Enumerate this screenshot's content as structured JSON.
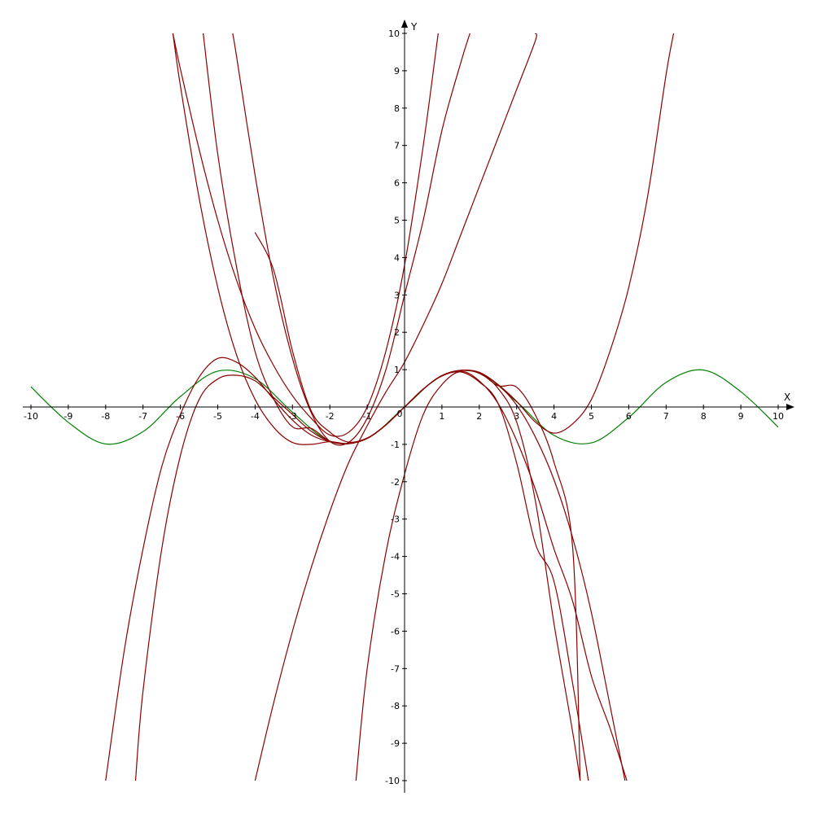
{
  "chart_data": {
    "type": "line",
    "title": "",
    "xlabel": "X",
    "ylabel": "Y",
    "xlim": [
      -10,
      10
    ],
    "ylim": [
      -10,
      10
    ],
    "grid": false,
    "x_ticks": [
      -10,
      -9,
      -8,
      -7,
      -6,
      -5,
      -4,
      -3,
      -2,
      -1,
      1,
      2,
      3,
      4,
      5,
      6,
      7,
      8,
      9,
      10
    ],
    "y_ticks": [
      -10,
      -9,
      -8,
      -7,
      -6,
      -5,
      -4,
      -3,
      -2,
      -1,
      1,
      2,
      3,
      4,
      5,
      6,
      7,
      8,
      9,
      10
    ],
    "origin_label": "0",
    "colors": {
      "sine": "#008000",
      "taylor": "#8b0000",
      "axes": "#000000"
    },
    "series": [
      {
        "color": "#008000",
        "x": [
          -10,
          -9,
          -8,
          -7,
          -6,
          -5,
          -4,
          -3,
          -2,
          -1,
          0,
          1,
          2,
          3,
          4,
          5,
          6,
          7,
          8,
          9,
          10
        ],
        "y": [
          0.54,
          -0.41,
          -0.99,
          -0.66,
          0.28,
          0.96,
          0.76,
          -0.14,
          -0.91,
          -0.84,
          0,
          0.84,
          0.91,
          0.14,
          -0.76,
          -0.96,
          -0.28,
          0.66,
          0.99,
          0.41,
          -0.54
        ]
      },
      {
        "color": "#8b0000",
        "x": [
          -4,
          -3.5,
          -3,
          -2.5,
          -2,
          -1.5,
          -1,
          -0.5,
          0,
          0.5,
          1,
          1.5,
          2,
          2.5,
          3,
          3.5,
          4,
          4.5,
          5
        ],
        "y": [
          4.67,
          3.65,
          1.5,
          -0.1,
          -0.67,
          -0.94,
          -0.83,
          -0.48,
          0,
          0.48,
          0.83,
          0.94,
          0.67,
          0.1,
          -1.5,
          -3.65,
          -4.67,
          -7.4,
          -10.5
        ]
      },
      {
        "color": "#8b0000",
        "x": [
          -5.4,
          -5,
          -4.5,
          -4,
          -3.5,
          -3,
          -2.5,
          -2,
          -1.5,
          -1,
          -0.5,
          0,
          0.5,
          1,
          1.5,
          2,
          2.5,
          3,
          3.5,
          4,
          4.5,
          4.7
        ],
        "y": [
          10.1,
          6.77,
          3.76,
          1.48,
          0.21,
          -0.53,
          -0.57,
          -0.92,
          -0.98,
          -0.84,
          -0.48,
          0,
          0.48,
          0.84,
          0.98,
          0.92,
          0.57,
          0.53,
          -0.21,
          -1.48,
          -3.76,
          -10
        ]
      },
      {
        "color": "#8b0000",
        "x": [
          -6.2,
          -6,
          -5.5,
          -5,
          -4.5,
          -4,
          -3.5,
          -3,
          -2.5,
          -2,
          -1.5,
          -1,
          -0.5,
          0,
          0.5,
          1,
          1.5,
          2,
          2.5,
          3,
          3.5,
          4,
          4.5,
          5,
          5.5,
          6,
          6.5,
          7,
          7.2
        ],
        "y": [
          10,
          8.6,
          5.6,
          3.2,
          1.4,
          0.2,
          -0.55,
          -0.95,
          -1.0,
          -0.93,
          -0.98,
          -0.84,
          -0.48,
          0,
          0.48,
          0.84,
          0.98,
          0.93,
          0.6,
          0.15,
          -0.4,
          -0.7,
          -0.45,
          0.2,
          1.5,
          3.2,
          5.6,
          8.9,
          10
        ]
      },
      {
        "color": "#8b0000",
        "x": [
          -8,
          -7.5,
          -7,
          -6.5,
          -6,
          -5.5,
          -5,
          -4.5,
          -4,
          -3.5,
          -3,
          -2.5,
          -2,
          -1.5,
          -1,
          -0.5,
          0,
          0.5,
          1,
          1.5,
          2,
          2.5,
          3,
          3.5,
          4,
          4.5,
          4.7
        ],
        "y": [
          -10,
          -6.5,
          -3.8,
          -1.6,
          -0.2,
          0.8,
          1.3,
          1.2,
          0.8,
          0.2,
          -0.35,
          -0.75,
          -0.93,
          -0.98,
          -0.84,
          -0.48,
          0,
          0.48,
          0.84,
          0.98,
          0.9,
          0.5,
          -0.4,
          -2.5,
          -5.8,
          -8.7,
          -10
        ]
      },
      {
        "color": "#8b0000",
        "x": [
          -7.2,
          -7,
          -6.5,
          -6,
          -5.5,
          -5,
          -4.5,
          -4,
          -3.5,
          -3,
          -2.5,
          -2,
          -1.5,
          -1,
          -0.5,
          0,
          0.5,
          1,
          1.5,
          2,
          2.5,
          3,
          3.5,
          4,
          4.5,
          5,
          5.5,
          5.9
        ],
        "y": [
          -10,
          -7.6,
          -3.8,
          -1.3,
          0.2,
          0.75,
          0.85,
          0.7,
          0.25,
          -0.2,
          -0.65,
          -0.92,
          -0.98,
          -0.84,
          -0.48,
          0,
          0.48,
          0.84,
          0.98,
          0.92,
          0.6,
          0.05,
          -0.8,
          -1.95,
          -3.5,
          -5.5,
          -8,
          -10
        ]
      },
      {
        "color": "#8b0000",
        "x": [
          -6.2,
          -6,
          -5.5,
          -5,
          -4.5,
          -4,
          -3.5,
          -3,
          -2.5,
          -2,
          -1.5,
          -1,
          -0.5,
          0,
          0.5,
          0.9
        ],
        "y": [
          10,
          9.05,
          6.9,
          5.0,
          3.4,
          2.1,
          1.1,
          0.3,
          -0.3,
          -0.75,
          -0.68,
          0.0,
          1.5,
          3.8,
          7.0,
          10
        ]
      },
      {
        "color": "#8b0000",
        "x": [
          -4,
          -3.5,
          -3,
          -2.5,
          -2,
          -1.5,
          -1,
          -0.5,
          0,
          0.5,
          1,
          1.5,
          2,
          2.5,
          3,
          3.5,
          3.5
        ],
        "y": [
          -10,
          -7.9,
          -6.0,
          -4.3,
          -2.8,
          -1.5,
          -0.5,
          0.4,
          1.2,
          2.2,
          3.3,
          4.6,
          5.9,
          7.2,
          8.5,
          9.8,
          10
        ]
      },
      {
        "color": "#8b0000",
        "x": [
          -1.3,
          -1,
          -0.5,
          0,
          0.5,
          1,
          1.5,
          2,
          2.5,
          3,
          3.5,
          4,
          4.5,
          5,
          5.5,
          5.95
        ],
        "y": [
          -10,
          -7.0,
          -3.9,
          -1.8,
          -0.2,
          0.6,
          0.95,
          0.7,
          0.1,
          -0.9,
          -2.2,
          -3.8,
          -5.2,
          -7.2,
          -8.6,
          -10
        ]
      },
      {
        "color": "#8b0000",
        "x": [
          -4.6,
          -4.5,
          -4,
          -3.5,
          -3,
          -2.5,
          -2,
          -1.5,
          -1,
          -0.5,
          0,
          0.5,
          1,
          1.5,
          1.75
        ],
        "y": [
          10,
          9.4,
          6.2,
          3.4,
          1.3,
          -0.15,
          -0.92,
          -0.95,
          -0.3,
          1.0,
          3.0,
          5.0,
          7.4,
          9.2,
          10
        ]
      }
    ]
  }
}
